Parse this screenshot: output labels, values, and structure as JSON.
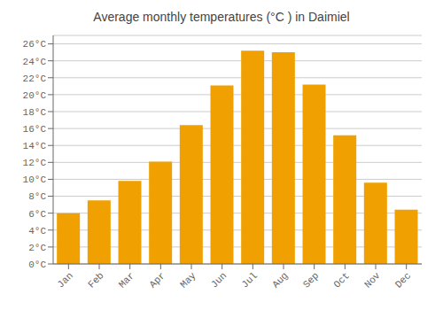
{
  "chart_data": {
    "type": "bar",
    "title": "Average monthly temperatures (°C ) in Daimiel",
    "categories": [
      "Jan",
      "Feb",
      "Mar",
      "Apr",
      "May",
      "Jun",
      "Jul",
      "Aug",
      "Sep",
      "Oct",
      "Nov",
      "Dec"
    ],
    "values": [
      6.0,
      7.5,
      9.8,
      12.1,
      16.4,
      21.1,
      25.2,
      25.0,
      21.2,
      15.2,
      9.6,
      6.4
    ],
    "color": "#F0A000",
    "ylim": [
      0,
      27
    ],
    "yticks": [
      {
        "value": 0,
        "label": "0°C"
      },
      {
        "value": 2,
        "label": "2°C"
      },
      {
        "value": 4,
        "label": "4°C"
      },
      {
        "value": 6,
        "label": "6°C"
      },
      {
        "value": 8,
        "label": "8°C"
      },
      {
        "value": 10,
        "label": "10°C"
      },
      {
        "value": 12,
        "label": "12°C"
      },
      {
        "value": 14,
        "label": "14°C"
      },
      {
        "value": 16,
        "label": "16°C"
      },
      {
        "value": 18,
        "label": "18°C"
      },
      {
        "value": 20,
        "label": "20°C"
      },
      {
        "value": 22,
        "label": "22°C"
      },
      {
        "value": 24,
        "label": "24°C"
      },
      {
        "value": 26,
        "label": "26°C"
      }
    ],
    "grid": true
  }
}
